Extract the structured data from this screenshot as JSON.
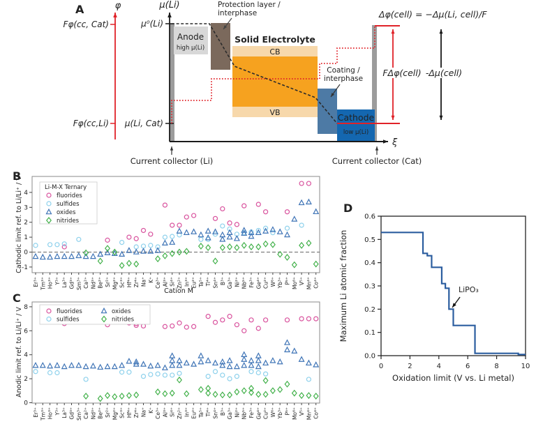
{
  "panel_a": {
    "label": "A",
    "phi_axis": "φ",
    "mu_axis": "μ(Li)",
    "xi": "ξ",
    "f_phi_cc_cat": "Fφ(cc, Cat)",
    "f_phi_cc_li": "Fφ(cc,Li)",
    "mu0": "μ⁰(Li)",
    "mu_li_cat": "μ(Li, Cat)",
    "anode": "Anode",
    "anode_sub": "high μ(Li)",
    "protection_line1": "Protection layer /",
    "protection_line2": "interphase",
    "solid_electrolyte": "Solid Electrolyte",
    "cb": "CB",
    "vb": "VB",
    "coating_line1": "Coating /",
    "coating_line2": "interphase",
    "cathode": "Cathode",
    "cathode_sub": "low μ(Li)",
    "delta_phi_eq": "Δφ(cell) = −Δμ(Li, cell)/F",
    "f_delta_phi": "FΔφ(cell)",
    "neg_delta_mu": "-Δμ(cell)",
    "cc_li": "Current collector (Li)",
    "cc_cat": "Current collector (Cat)",
    "colors": {
      "red": "#e02228",
      "anode": "#d8d8d8",
      "protection": "#7b695c",
      "se_orange": "#f6a21f",
      "se_band": "#f7d8ab",
      "coating": "#4d7aa5",
      "cathode": "#1467b0",
      "collector": "#9c9c9c",
      "text_dark": "#333333"
    }
  },
  "chart_data": [
    {
      "id": "B",
      "panel_label": "B",
      "type": "scatter",
      "ylabel": "Cathodic limit ref. to Li/Li⁺ / V",
      "xlabel": "Cation M",
      "ylim": [
        -1.4,
        5.1
      ],
      "yticks": [
        -1,
        0,
        1,
        2,
        3,
        4
      ],
      "zero_dashed_line": true,
      "legend_title": "Li-M-X Ternary",
      "legend_position": "upper-left",
      "series_labels": {
        "f": "fluorides",
        "s": "sulfides",
        "o": "oxides",
        "n": "nitrides"
      },
      "series_style": {
        "f": {
          "marker": "circle",
          "color": "#d9539e"
        },
        "s": {
          "marker": "circle",
          "color": "#8ed1ec"
        },
        "o": {
          "marker": "triangle",
          "color": "#3f74b6"
        },
        "n": {
          "marker": "diamond",
          "color": "#43b14b"
        }
      },
      "data": [
        {
          "cat": "Er³⁺",
          "s": [
            0.45
          ],
          "o": [
            -0.3
          ]
        },
        {
          "cat": "Tm³⁺",
          "o": [
            -0.35
          ]
        },
        {
          "cat": "Ho³⁺",
          "s": [
            0.5
          ],
          "o": [
            -0.35
          ]
        },
        {
          "cat": "Y³⁺",
          "s": [
            0.5
          ],
          "o": [
            -0.3
          ]
        },
        {
          "cat": "La³⁺",
          "f": [
            0.35
          ],
          "s": [
            0.55
          ],
          "o": [
            -0.3
          ]
        },
        {
          "cat": "Gd³⁺",
          "o": [
            -0.3
          ]
        },
        {
          "cat": "Sm³⁺",
          "s": [
            0.85
          ],
          "o": [
            -0.25
          ]
        },
        {
          "cat": "Ca²⁺",
          "o": [
            -0.3
          ],
          "n": [
            -0.05
          ]
        },
        {
          "cat": "Nd³⁺",
          "o": [
            -0.3
          ]
        },
        {
          "cat": "Be²⁺",
          "o": [
            -0.15
          ],
          "n": [
            -0.6
          ]
        },
        {
          "cat": "Sr²⁺",
          "f": [
            0.8
          ],
          "o": [
            -0.05
          ],
          "n": [
            0.25
          ]
        },
        {
          "cat": "Mg²⁺",
          "o": [
            -0.1
          ],
          "n": [
            0.0
          ]
        },
        {
          "cat": "Sc³⁺",
          "s": [
            0.65
          ],
          "o": [
            -0.15
          ],
          "n": [
            -0.9
          ]
        },
        {
          "cat": "Hf⁴⁺",
          "f": [
            1.0
          ],
          "o": [
            0.1
          ],
          "n": [
            -0.75
          ]
        },
        {
          "cat": "Zr⁴⁺",
          "f": [
            0.9
          ],
          "s": [
            0.35
          ],
          "o": [
            0.0
          ],
          "n": [
            -0.8
          ]
        },
        {
          "cat": "Na⁺",
          "f": [
            1.45
          ],
          "s": [
            0.4
          ],
          "o": [
            0.05
          ]
        },
        {
          "cat": "K⁺",
          "f": [
            1.2
          ],
          "s": [
            0.45
          ],
          "o": [
            0.05
          ]
        },
        {
          "cat": "Ce³⁺",
          "s": [
            0.35
          ],
          "o": [
            0.1
          ],
          "n": [
            -0.45
          ]
        },
        {
          "cat": "Al³⁺",
          "f": [
            3.15
          ],
          "s": [
            1.0
          ],
          "o": [
            0.6
          ],
          "n": [
            -0.25
          ]
        },
        {
          "cat": "Si⁴⁺",
          "f": [
            1.8
          ],
          "s": [
            1.05
          ],
          "o": [
            0.65
          ],
          "n": [
            -0.1
          ]
        },
        {
          "cat": "Zn²⁺",
          "f": [
            1.8
          ],
          "s": [
            1.15
          ],
          "o": [
            1.4
          ],
          "n": [
            0.0
          ]
        },
        {
          "cat": "In³⁺",
          "f": [
            2.35
          ],
          "o": [
            1.3
          ],
          "n": [
            0.05
          ]
        },
        {
          "cat": "Eu²⁺",
          "f": [
            2.45
          ],
          "o": [
            1.35
          ]
        },
        {
          "cat": "Ta⁵⁺",
          "s": [
            0.85
          ],
          "o": [
            1.15
          ],
          "n": [
            0.4
          ]
        },
        {
          "cat": "Ti⁴⁺",
          "s": [
            0.85
          ],
          "o": [
            0.95,
            1.4
          ],
          "n": [
            0.3
          ]
        },
        {
          "cat": "Sn⁴⁺",
          "f": [
            2.25
          ],
          "s": [
            1.2
          ],
          "o": [
            1.35
          ],
          "n": [
            -0.6
          ]
        },
        {
          "cat": "B³⁺",
          "f": [
            2.9
          ],
          "s": [
            1.75
          ],
          "o": [
            0.85,
            1.15
          ],
          "n": [
            0.3
          ]
        },
        {
          "cat": "Ga³⁺",
          "f": [
            1.95
          ],
          "s": [
            1.55
          ],
          "o": [
            1.0,
            1.3
          ],
          "n": [
            0.35
          ]
        },
        {
          "cat": "Ni²⁺",
          "f": [
            1.85
          ],
          "s": [
            1.2
          ],
          "o": [
            0.9
          ],
          "n": [
            0.3
          ]
        },
        {
          "cat": "Nb⁵⁺",
          "f": [
            3.1
          ],
          "s": [
            1.3
          ],
          "o": [
            1.25,
            1.45
          ],
          "n": [
            0.45
          ]
        },
        {
          "cat": "Fe³⁺",
          "s": [
            1.35
          ],
          "o": [
            1.05,
            1.3
          ],
          "n": [
            0.35
          ]
        },
        {
          "cat": "Ge⁴⁺",
          "f": [
            3.2
          ],
          "s": [
            1.45
          ],
          "o": [
            1.3
          ],
          "n": [
            0.35
          ]
        },
        {
          "cat": "Cu²⁺",
          "f": [
            2.7
          ],
          "s": [
            1.6
          ],
          "o": [
            1.4
          ],
          "n": [
            0.55
          ]
        },
        {
          "cat": "W⁶⁺",
          "s": [
            1.3
          ],
          "o": [
            1.5
          ],
          "n": [
            0.5
          ]
        },
        {
          "cat": "Yb³⁺",
          "o": [
            1.35
          ],
          "n": [
            -0.15
          ]
        },
        {
          "cat": "P⁵⁺",
          "f": [
            2.7
          ],
          "s": [
            1.6
          ],
          "o": [
            1.15
          ],
          "n": [
            -0.35
          ]
        },
        {
          "cat": "Mo⁶⁺",
          "o": [
            2.2
          ],
          "n": [
            -0.85
          ]
        },
        {
          "cat": "V⁵⁺",
          "f": [
            4.6
          ],
          "s": [
            1.8
          ],
          "o": [
            3.3
          ],
          "n": [
            0.45
          ]
        },
        {
          "cat": "Mn⁴⁺",
          "f": [
            4.6
          ],
          "o": [
            3.35
          ],
          "n": [
            0.6
          ]
        },
        {
          "cat": "Co⁴⁺",
          "o": [
            2.7
          ],
          "n": [
            -0.8
          ]
        }
      ]
    },
    {
      "id": "C",
      "panel_label": "C",
      "type": "scatter",
      "ylabel": "Anodic limit ref. to Li/Li⁺ / V",
      "xlabel": "",
      "ylim": [
        0,
        8.4
      ],
      "yticks": [
        0,
        2,
        4,
        6,
        8
      ],
      "zero_dashed_line": false,
      "legend_title": "",
      "legend_position": "upper-left-two-columns",
      "series_labels": {
        "f": "fluorides",
        "s": "sulfides",
        "o": "oxides",
        "n": "nitrides"
      },
      "series_style": {
        "f": {
          "marker": "circle",
          "color": "#d9539e"
        },
        "s": {
          "marker": "circle",
          "color": "#8ed1ec"
        },
        "o": {
          "marker": "triangle",
          "color": "#3f74b6"
        },
        "n": {
          "marker": "diamond",
          "color": "#43b14b"
        }
      },
      "data": [
        {
          "cat": "Er³⁺",
          "s": [
            2.6
          ],
          "o": [
            3.1
          ]
        },
        {
          "cat": "Tm³⁺",
          "o": [
            3.1
          ]
        },
        {
          "cat": "Ho³⁺",
          "s": [
            2.5
          ],
          "o": [
            3.05
          ]
        },
        {
          "cat": "Y³⁺",
          "s": [
            2.5
          ],
          "o": [
            3.1
          ]
        },
        {
          "cat": "La³⁺",
          "f": [
            6.6
          ],
          "o": [
            3.0
          ]
        },
        {
          "cat": "Gd³⁺",
          "o": [
            3.1
          ]
        },
        {
          "cat": "Sm³⁺",
          "o": [
            3.1
          ]
        },
        {
          "cat": "Ca²⁺",
          "s": [
            1.95
          ],
          "o": [
            3.0
          ],
          "n": [
            0.55
          ]
        },
        {
          "cat": "Nd³⁺",
          "o": [
            3.05
          ]
        },
        {
          "cat": "Be²⁺",
          "o": [
            2.95
          ],
          "n": [
            0.35
          ]
        },
        {
          "cat": "Sr²⁺",
          "f": [
            6.5
          ],
          "o": [
            3.0
          ],
          "n": [
            0.6
          ]
        },
        {
          "cat": "Mg²⁺",
          "o": [
            3.0
          ],
          "n": [
            0.5
          ]
        },
        {
          "cat": "Sc³⁺",
          "s": [
            2.55
          ],
          "o": [
            3.1
          ],
          "n": [
            0.55
          ]
        },
        {
          "cat": "Hf⁴⁺",
          "f": [
            6.65
          ],
          "s": [
            2.55
          ],
          "o": [
            3.45
          ],
          "n": [
            0.6
          ]
        },
        {
          "cat": "Zr⁴⁺",
          "f": [
            6.45,
            6.6
          ],
          "o": [
            3.2,
            3.4
          ],
          "n": [
            0.65
          ]
        },
        {
          "cat": "Na⁺",
          "f": [
            6.4
          ],
          "s": [
            2.2
          ],
          "o": [
            3.2
          ]
        },
        {
          "cat": "K⁺",
          "s": [
            2.35
          ],
          "o": [
            3.05
          ]
        },
        {
          "cat": "Ce³⁺",
          "s": [
            2.4
          ],
          "o": [
            3.1
          ],
          "n": [
            0.9
          ]
        },
        {
          "cat": "Al³⁺",
          "f": [
            6.35
          ],
          "s": [
            2.3
          ],
          "o": [
            2.9
          ],
          "n": [
            0.75
          ]
        },
        {
          "cat": "Si⁴⁺",
          "f": [
            6.4
          ],
          "s": [
            2.3
          ],
          "o": [
            3.1,
            3.5,
            3.9
          ],
          "n": [
            0.8
          ]
        },
        {
          "cat": "Zn²⁺",
          "f": [
            6.65
          ],
          "s": [
            2.45
          ],
          "o": [
            3.1,
            3.5
          ],
          "n": [
            1.9
          ]
        },
        {
          "cat": "In³⁺",
          "f": [
            6.3
          ],
          "o": [
            3.3
          ],
          "n": [
            0.75
          ]
        },
        {
          "cat": "Eu²⁺",
          "f": [
            6.35
          ],
          "o": [
            3.2
          ]
        },
        {
          "cat": "Ta⁵⁺",
          "o": [
            3.4,
            3.9
          ],
          "n": [
            1.1
          ]
        },
        {
          "cat": "Ti⁴⁺",
          "f": [
            7.2
          ],
          "s": [
            2.2
          ],
          "o": [
            3.5
          ],
          "n": [
            0.8,
            1.2
          ]
        },
        {
          "cat": "Sn⁴⁺",
          "f": [
            6.7
          ],
          "s": [
            2.6
          ],
          "o": [
            3.3
          ],
          "n": [
            0.7
          ]
        },
        {
          "cat": "B³⁺",
          "f": [
            6.9
          ],
          "s": [
            2.3
          ],
          "o": [
            3.1,
            3.4
          ],
          "n": [
            0.65
          ]
        },
        {
          "cat": "Ga³⁺",
          "f": [
            7.2
          ],
          "s": [
            2.0
          ],
          "o": [
            3.0,
            3.5
          ],
          "n": [
            0.65
          ]
        },
        {
          "cat": "Ni²⁺",
          "f": [
            6.5
          ],
          "s": [
            2.2
          ],
          "o": [
            3.0
          ],
          "n": [
            0.9
          ]
        },
        {
          "cat": "Nb⁵⁺",
          "f": [
            6.0
          ],
          "o": [
            3.1,
            3.6,
            4.0
          ],
          "n": [
            1.0
          ]
        },
        {
          "cat": "Fe³⁺",
          "f": [
            6.9
          ],
          "s": [
            2.6
          ],
          "o": [
            3.1,
            3.5
          ],
          "n": [
            0.85,
            1.2
          ]
        },
        {
          "cat": "Ge⁴⁺",
          "f": [
            6.2
          ],
          "s": [
            2.5
          ],
          "o": [
            3.0,
            3.5,
            3.9
          ],
          "n": [
            0.7
          ]
        },
        {
          "cat": "Cu²⁺",
          "f": [
            6.9
          ],
          "s": [
            2.4
          ],
          "o": [
            3.3
          ],
          "n": [
            0.7,
            1.85
          ]
        },
        {
          "cat": "W⁶⁺",
          "o": [
            3.5
          ],
          "n": [
            1.0
          ]
        },
        {
          "cat": "Yb³⁺",
          "o": [
            3.4
          ],
          "n": [
            1.1
          ]
        },
        {
          "cat": "P⁵⁺",
          "f": [
            6.9
          ],
          "o": [
            4.4,
            5.0
          ],
          "n": [
            1.55
          ]
        },
        {
          "cat": "Mo⁶⁺",
          "o": [
            4.3
          ],
          "n": [
            0.8
          ]
        },
        {
          "cat": "V⁵⁺",
          "f": [
            7.0
          ],
          "o": [
            3.6
          ],
          "n": [
            0.6
          ]
        },
        {
          "cat": "Mn⁴⁺",
          "f": [
            7.0
          ],
          "s": [
            1.95
          ],
          "o": [
            3.3
          ],
          "n": [
            0.6
          ]
        },
        {
          "cat": "Co⁴⁺",
          "f": [
            7.0
          ],
          "o": [
            3.15
          ],
          "n": [
            0.55
          ]
        }
      ]
    },
    {
      "id": "D",
      "panel_label": "D",
      "type": "line",
      "subtype": "step",
      "xlabel": "Oxidation limit (V vs. Li metal)",
      "ylabel": "Maximum Li atomic fraction",
      "xlim": [
        0,
        10
      ],
      "ylim": [
        0,
        0.6
      ],
      "xticks": [
        "0",
        "2",
        "4",
        "6",
        "8",
        "10"
      ],
      "yticks": [
        "0.0",
        "0.1",
        "0.2",
        "0.3",
        "0.4",
        "0.5",
        "0.6"
      ],
      "line_color": "#2b5d9f",
      "steps": [
        {
          "from": 0,
          "to": 2.9,
          "y": 0.53
        },
        {
          "from": 2.9,
          "to": 3.2,
          "y": 0.44
        },
        {
          "from": 3.2,
          "to": 3.5,
          "y": 0.43
        },
        {
          "from": 3.5,
          "to": 4.2,
          "y": 0.38
        },
        {
          "from": 4.2,
          "to": 4.45,
          "y": 0.31
        },
        {
          "from": 4.45,
          "to": 4.7,
          "y": 0.29
        },
        {
          "from": 4.7,
          "to": 5.0,
          "y": 0.2
        },
        {
          "from": 5.0,
          "to": 6.5,
          "y": 0.13
        },
        {
          "from": 6.5,
          "to": 9.5,
          "y": 0.01
        },
        {
          "from": 9.5,
          "to": 10,
          "y": 0.005
        }
      ],
      "annotation": {
        "text": "LiPO₃",
        "text_x": 5.36,
        "text_y": 0.273,
        "arrow_from_x": 5.46,
        "arrow_from_y": 0.252,
        "arrow_to_x": 4.93,
        "arrow_to_y": 0.207
      }
    }
  ]
}
